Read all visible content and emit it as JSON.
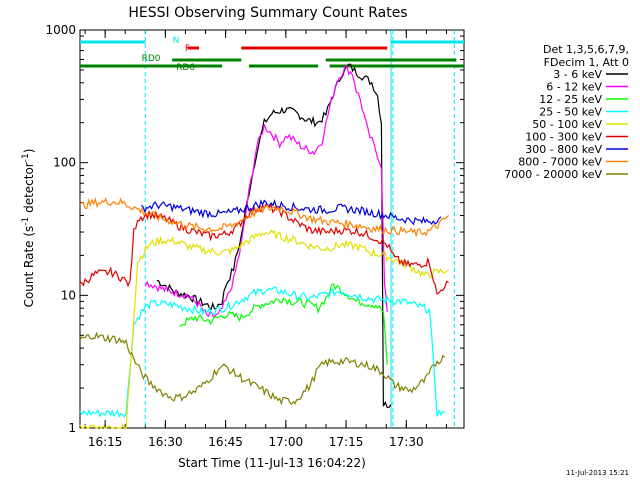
{
  "chart_data": {
    "type": "line",
    "title": "HESSI Observing Summary Count Rates",
    "xlabel": "Start Time (11-Jul-13 16:04:22)",
    "ylabel_main": "Count Rate (s",
    "ylabel_sup1": "-1",
    "ylabel_mid": " detector",
    "ylabel_sup2": "-1",
    "ylabel_end": ")",
    "y_scale": "log",
    "ylim": [
      1,
      1000
    ],
    "xlim_min": [
      4.37,
      100
    ],
    "x_ticks": [
      {
        "m": 10.63,
        "label": "16:15"
      },
      {
        "m": 25.63,
        "label": "16:30"
      },
      {
        "m": 40.63,
        "label": "16:45"
      },
      {
        "m": 55.63,
        "label": "17:00"
      },
      {
        "m": 70.63,
        "label": "17:15"
      },
      {
        "m": 85.63,
        "label": "17:30"
      }
    ],
    "y_ticks": [
      {
        "v": 1,
        "label": "1"
      },
      {
        "v": 10,
        "label": "10"
      },
      {
        "v": 100,
        "label": "100"
      },
      {
        "v": 1000,
        "label": "1000"
      }
    ],
    "legend": {
      "header": [
        "Det 1,3,5,6,7,9,",
        "FDecim 1, Att 0"
      ],
      "position": "right"
    },
    "flags": [
      {
        "label": "N",
        "color": "#00e5ee",
        "segments": [
          [
            0,
            17
          ],
          [
            81,
            100
          ]
        ]
      },
      {
        "label": "F",
        "color": "#e00000",
        "segments": [
          [
            28,
            31
          ],
          [
            42,
            80
          ]
        ]
      },
      {
        "label": "RD0",
        "color": "#008000",
        "segments": [
          [
            24,
            42
          ],
          [
            64,
            98
          ]
        ]
      },
      {
        "label": "RD6",
        "color": "#008000",
        "segments": [
          [
            0,
            37
          ],
          [
            44,
            62
          ],
          [
            65,
            100
          ]
        ]
      }
    ],
    "series": [
      {
        "name": "3 - 6 keV",
        "color": "#000000",
        "points": [
          [
            20,
            13
          ],
          [
            22,
            12
          ],
          [
            25,
            10.5
          ],
          [
            28,
            10
          ],
          [
            31,
            9
          ],
          [
            35,
            8
          ],
          [
            37,
            9
          ],
          [
            38,
            12
          ],
          [
            40,
            16
          ],
          [
            42,
            28
          ],
          [
            44,
            60
          ],
          [
            46,
            120
          ],
          [
            48,
            200
          ],
          [
            50,
            235
          ],
          [
            53,
            250
          ],
          [
            56,
            240
          ],
          [
            59,
            210
          ],
          [
            62,
            200
          ],
          [
            64,
            230
          ],
          [
            66,
            330
          ],
          [
            68,
            460
          ],
          [
            70,
            540
          ],
          [
            72,
            480
          ],
          [
            74,
            440
          ],
          [
            76,
            400
          ],
          [
            77.5,
            320
          ],
          [
            78.5,
            200
          ],
          [
            79,
            1.5
          ],
          [
            81,
            1.5
          ]
        ]
      },
      {
        "name": "6 - 12 keV",
        "color": "#ff00ff",
        "points": [
          [
            17,
            12.5
          ],
          [
            19,
            12
          ],
          [
            22,
            11
          ],
          [
            25,
            10.5
          ],
          [
            28,
            10
          ],
          [
            31,
            8.5
          ],
          [
            33,
            7
          ],
          [
            36,
            7
          ],
          [
            38,
            9
          ],
          [
            40,
            13
          ],
          [
            42,
            24
          ],
          [
            44,
            60
          ],
          [
            46,
            130
          ],
          [
            48,
            190
          ],
          [
            50,
            165
          ],
          [
            52,
            140
          ],
          [
            54,
            160
          ],
          [
            56,
            145
          ],
          [
            58,
            130
          ],
          [
            61,
            120
          ],
          [
            63,
            145
          ],
          [
            65,
            260
          ],
          [
            67,
            420
          ],
          [
            69,
            520
          ],
          [
            71,
            470
          ],
          [
            72,
            350
          ],
          [
            73,
            300
          ],
          [
            75,
            170
          ],
          [
            77,
            125
          ],
          [
            78.5,
            95
          ],
          [
            79.3,
            12
          ],
          [
            80,
            7.5
          ]
        ]
      },
      {
        "name": "12 - 25 keV",
        "color": "#00ff00",
        "points": [
          [
            26,
            6
          ],
          [
            30,
            6.8
          ],
          [
            34,
            6.4
          ],
          [
            38,
            7.2
          ],
          [
            42,
            6.8
          ],
          [
            44,
            7.5
          ],
          [
            47,
            8.5
          ],
          [
            50,
            9
          ],
          [
            53,
            9.5
          ],
          [
            55,
            9
          ],
          [
            58,
            8.8
          ],
          [
            60,
            8.5
          ],
          [
            62,
            8
          ],
          [
            64,
            9.5
          ],
          [
            66,
            12
          ],
          [
            68,
            11
          ],
          [
            70,
            10
          ],
          [
            72,
            9
          ],
          [
            74,
            8.8
          ],
          [
            77,
            8.5
          ],
          [
            79,
            7.5
          ],
          [
            80,
            3
          ]
        ]
      },
      {
        "name": "25 - 50 keV",
        "color": "#00ffff",
        "points": [
          [
            0,
            1.3
          ],
          [
            7,
            1.3
          ],
          [
            12,
            1.3
          ],
          [
            14,
            6
          ],
          [
            16,
            7.5
          ],
          [
            18,
            8.5
          ],
          [
            20,
            8.7
          ],
          [
            24,
            8.5
          ],
          [
            28,
            8
          ],
          [
            32,
            7.5
          ],
          [
            36,
            7.8
          ],
          [
            40,
            8.6
          ],
          [
            44,
            10
          ],
          [
            48,
            11
          ],
          [
            52,
            10.8
          ],
          [
            56,
            10
          ],
          [
            60,
            9.5
          ],
          [
            64,
            10.2
          ],
          [
            68,
            10.8
          ],
          [
            72,
            10
          ],
          [
            76,
            9.4
          ],
          [
            80,
            9.2
          ],
          [
            84,
            9
          ],
          [
            88,
            8.3
          ],
          [
            91,
            7.8
          ],
          [
            93,
            1.3
          ],
          [
            95,
            1.3
          ]
        ]
      },
      {
        "name": "50 - 100 keV",
        "color": "#e0e000",
        "points": [
          [
            0,
            1
          ],
          [
            12,
            1
          ],
          [
            15,
            18
          ],
          [
            18,
            24
          ],
          [
            21,
            26
          ],
          [
            25,
            25.5
          ],
          [
            29,
            23
          ],
          [
            34,
            21.5
          ],
          [
            37,
            21
          ],
          [
            40,
            22
          ],
          [
            44,
            26
          ],
          [
            48,
            30
          ],
          [
            52,
            28
          ],
          [
            56,
            26
          ],
          [
            60,
            23.5
          ],
          [
            64,
            22.5
          ],
          [
            68,
            24
          ],
          [
            72,
            23.5
          ],
          [
            76,
            21
          ],
          [
            79,
            20
          ],
          [
            82,
            18.5
          ],
          [
            86,
            16.5
          ],
          [
            90,
            14
          ],
          [
            93,
            15
          ],
          [
            96,
            15.5
          ]
        ]
      },
      {
        "name": "100 - 300 keV",
        "color": "#e00000",
        "points": [
          [
            0,
            12
          ],
          [
            4,
            14.5
          ],
          [
            8,
            15
          ],
          [
            11,
            13.5
          ],
          [
            13,
            12
          ],
          [
            14,
            30
          ],
          [
            15,
            38
          ],
          [
            18,
            41
          ],
          [
            22,
            38
          ],
          [
            26,
            33
          ],
          [
            30,
            30
          ],
          [
            34,
            28
          ],
          [
            38,
            29
          ],
          [
            41,
            33
          ],
          [
            44,
            42
          ],
          [
            48,
            47
          ],
          [
            52,
            43
          ],
          [
            56,
            36
          ],
          [
            60,
            31
          ],
          [
            64,
            30
          ],
          [
            68,
            31
          ],
          [
            72,
            30.5
          ],
          [
            75,
            28.5
          ],
          [
            77,
            27
          ],
          [
            80,
            24
          ],
          [
            82,
            19
          ],
          [
            85,
            17
          ],
          [
            88,
            17
          ],
          [
            91,
            18
          ],
          [
            93,
            10
          ],
          [
            95,
            12
          ],
          [
            96,
            12.5
          ]
        ]
      },
      {
        "name": "300 - 800 keV",
        "color": "#0000e0",
        "points": [
          [
            16,
            45
          ],
          [
            20,
            48
          ],
          [
            24,
            46.5
          ],
          [
            28,
            44
          ],
          [
            32,
            42
          ],
          [
            36,
            41
          ],
          [
            40,
            42.5
          ],
          [
            44,
            46
          ],
          [
            48,
            50
          ],
          [
            52,
            48
          ],
          [
            56,
            46
          ],
          [
            60,
            44.5
          ],
          [
            64,
            44
          ],
          [
            68,
            45.5
          ],
          [
            72,
            44
          ],
          [
            76,
            42
          ],
          [
            80,
            40
          ],
          [
            83,
            38
          ],
          [
            86,
            37
          ],
          [
            89,
            36
          ],
          [
            92,
            36.5
          ],
          [
            94,
            39
          ]
        ]
      },
      {
        "name": "800 - 7000 keV",
        "color": "#ff8000",
        "points": [
          [
            0,
            47
          ],
          [
            4,
            50
          ],
          [
            8,
            51
          ],
          [
            11,
            50
          ],
          [
            14,
            46
          ],
          [
            17,
            42
          ],
          [
            20,
            39
          ],
          [
            24,
            36
          ],
          [
            28,
            33.5
          ],
          [
            32,
            32
          ],
          [
            36,
            31.5
          ],
          [
            40,
            34
          ],
          [
            44,
            40
          ],
          [
            48,
            45
          ],
          [
            52,
            46
          ],
          [
            56,
            42
          ],
          [
            60,
            38
          ],
          [
            64,
            36
          ],
          [
            68,
            35
          ],
          [
            72,
            34
          ],
          [
            76,
            32
          ],
          [
            80,
            31
          ],
          [
            84,
            30.5
          ],
          [
            88,
            29.5
          ],
          [
            91,
            30.5
          ],
          [
            94,
            35
          ],
          [
            96,
            40
          ]
        ]
      },
      {
        "name": "7000 - 20000 keV",
        "color": "#808000",
        "points": [
          [
            0,
            4.6
          ],
          [
            3,
            5
          ],
          [
            6,
            4.8
          ],
          [
            9,
            4.7
          ],
          [
            12,
            4.4
          ],
          [
            14,
            3.3
          ],
          [
            16,
            2.6
          ],
          [
            18,
            2.2
          ],
          [
            20,
            2
          ],
          [
            22,
            1.8
          ],
          [
            24,
            1.7
          ],
          [
            26,
            1.7
          ],
          [
            28,
            1.8
          ],
          [
            30,
            1.9
          ],
          [
            32,
            2.1
          ],
          [
            34,
            2.4
          ],
          [
            36,
            2.8
          ],
          [
            38,
            2.9
          ],
          [
            40,
            2.6
          ],
          [
            44,
            2.2
          ],
          [
            48,
            1.9
          ],
          [
            52,
            1.6
          ],
          [
            56,
            1.6
          ],
          [
            60,
            2.1
          ],
          [
            62,
            2.8
          ],
          [
            64,
            3.1
          ],
          [
            68,
            3.2
          ],
          [
            72,
            3.1
          ],
          [
            76,
            2.9
          ],
          [
            79,
            2.6
          ],
          [
            82,
            2.1
          ],
          [
            86,
            1.9
          ],
          [
            90,
            2.3
          ],
          [
            93,
            3.2
          ],
          [
            95,
            3.4
          ]
        ]
      }
    ]
  },
  "footer": {
    "timestamp": "11-Jul-2013 15:21"
  }
}
